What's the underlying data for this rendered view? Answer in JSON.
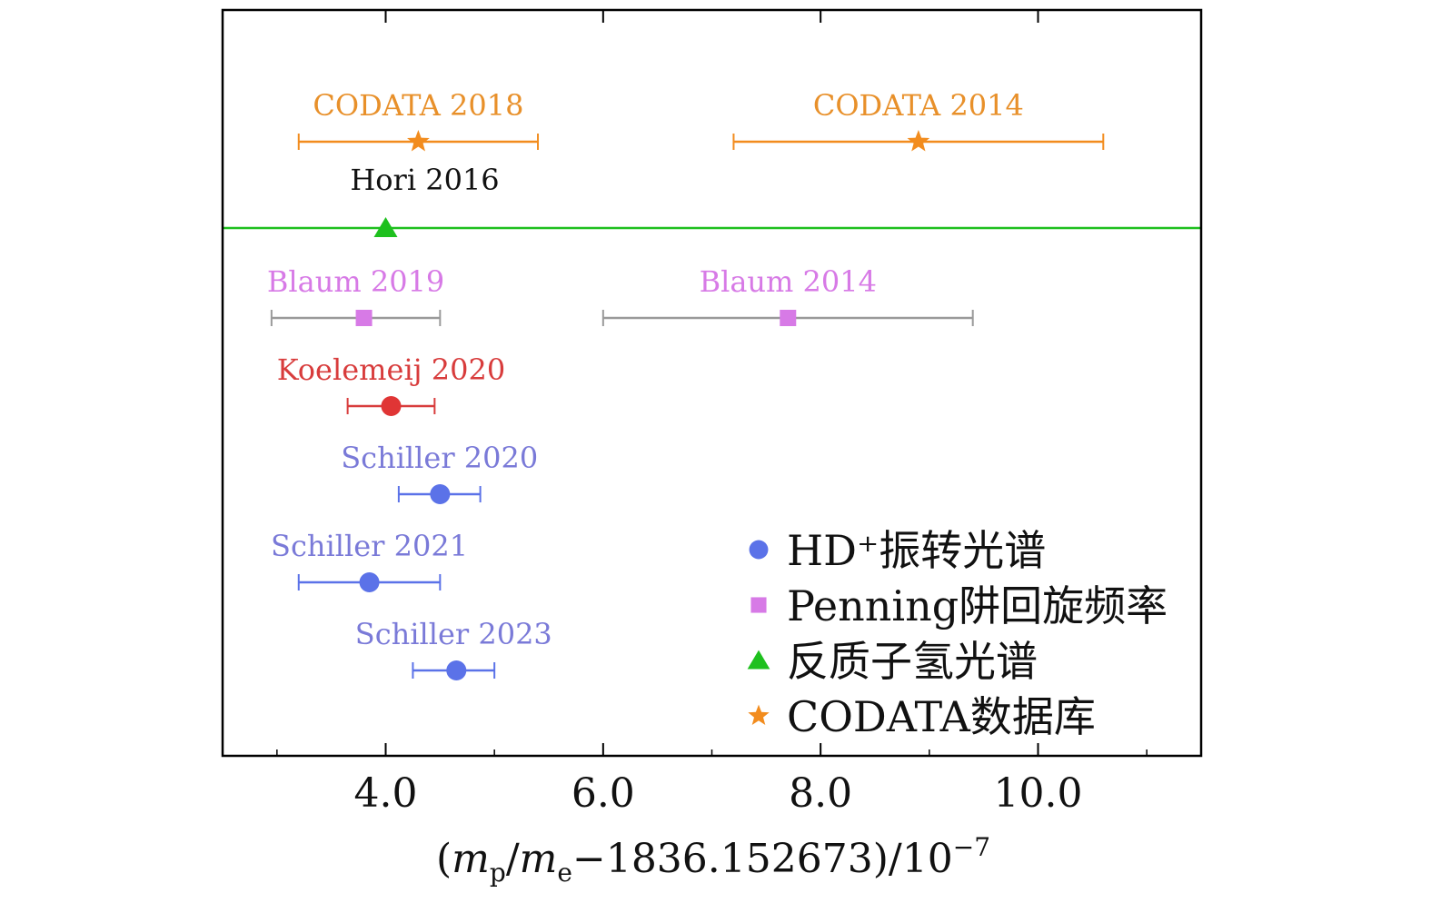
{
  "chart_data": {
    "type": "scatter",
    "xlabel": "(m_p/m_e−1836.152673)/10^−7",
    "xlabel_parts": {
      "open": "(",
      "m1": "m",
      "sub1": "p",
      "slash": "/",
      "m2": "m",
      "sub2": "e",
      "rest": "−1836.152673)/10",
      "exp": "−7"
    },
    "xlim": [
      2.5,
      11.5
    ],
    "xticks": [
      {
        "value": 4.0,
        "label": "4.0"
      },
      {
        "value": 6.0,
        "label": "6.0"
      },
      {
        "value": 8.0,
        "label": "8.0"
      },
      {
        "value": 10.0,
        "label": "10.0"
      }
    ],
    "xminor": [
      3,
      5,
      7,
      9,
      11
    ],
    "grid": false,
    "legend_position": "bottom-right",
    "series": [
      {
        "key": "hd",
        "name": "HD⁺振转光谱",
        "marker": "circle",
        "color": "#5b72e8"
      },
      {
        "key": "penning",
        "name": "Penning阱回旋频率",
        "marker": "square",
        "color": "#d77ae6"
      },
      {
        "key": "antihydrogen",
        "name": "反质子氢光谱",
        "marker": "triangle",
        "color": "#1ec01e"
      },
      {
        "key": "codata",
        "name": "CODATA数据库",
        "marker": "star",
        "color": "#f28c1e"
      }
    ],
    "points": [
      {
        "label": "CODATA 2018",
        "series": "codata",
        "x": 4.3,
        "err_lo": 3.2,
        "err_hi": 5.4,
        "bar_color": "#f28c1e",
        "label_color": "#e8902a"
      },
      {
        "label": "CODATA 2014",
        "series": "codata",
        "x": 8.9,
        "err_lo": 7.2,
        "err_hi": 10.6,
        "bar_color": "#f28c1e",
        "label_color": "#e8902a"
      },
      {
        "label": "Hori 2016",
        "series": "antihydrogen",
        "x": 4.0,
        "err_lo": 2.5,
        "err_hi": 11.5,
        "bar_color": "#1ec01e",
        "label_color": "#111111"
      },
      {
        "label": "Blaum 2019",
        "series": "penning",
        "x": 3.8,
        "err_lo": 2.95,
        "err_hi": 4.5,
        "bar_color": "#9a9a9a",
        "label_color": "#d77ae6"
      },
      {
        "label": "Blaum 2014",
        "series": "penning",
        "x": 7.7,
        "err_lo": 6.0,
        "err_hi": 9.4,
        "bar_color": "#9a9a9a",
        "label_color": "#d77ae6"
      },
      {
        "label": "Koelemeij 2020",
        "series": "hd",
        "x": 4.05,
        "err_lo": 3.65,
        "err_hi": 4.45,
        "bar_color": "#d83c3c",
        "label_color": "#d83c3c",
        "marker_color": "#e03535"
      },
      {
        "label": "Schiller 2020",
        "series": "hd",
        "x": 4.5,
        "err_lo": 4.12,
        "err_hi": 4.87,
        "bar_color": "#5b72e8",
        "label_color": "#7a7ad8"
      },
      {
        "label": "Schiller 2021",
        "series": "hd",
        "x": 3.85,
        "err_lo": 3.2,
        "err_hi": 4.5,
        "bar_color": "#5b72e8",
        "label_color": "#7a7ad8"
      },
      {
        "label": "Schiller 2023",
        "series": "hd",
        "x": 4.65,
        "err_lo": 4.25,
        "err_hi": 5.0,
        "bar_color": "#5b72e8",
        "label_color": "#7a7ad8"
      }
    ]
  }
}
